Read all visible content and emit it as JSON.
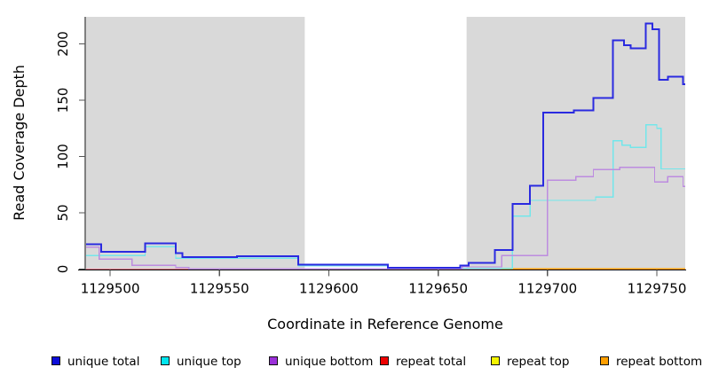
{
  "chart_data": {
    "type": "line",
    "subtype": "step-after",
    "title": "",
    "xlabel": "Coordinate in Reference Genome",
    "ylabel": "Read Coverage Depth",
    "xlim": [
      1129489,
      1129763
    ],
    "ylim": [
      0,
      224
    ],
    "x_ticks": [
      1129500,
      1129550,
      1129600,
      1129650,
      1129700,
      1129750
    ],
    "y_ticks": [
      0,
      50,
      100,
      150,
      200
    ],
    "grid": false,
    "legend_position": "bottom",
    "plot_background": "#ffffff",
    "shaded_regions": {
      "color": "#d9d9d9",
      "ranges": [
        [
          1129489,
          1129589
        ],
        [
          1129663,
          1129763
        ]
      ]
    },
    "series": [
      {
        "name": "unique total",
        "legend_color": "#0d0dd9",
        "line_color": "#2a2ae0",
        "width": 2,
        "z": 6,
        "steps": [
          [
            1129489,
            22
          ],
          [
            1129496,
            15.5
          ],
          [
            1129516,
            23
          ],
          [
            1129530,
            14
          ],
          [
            1129533,
            10.5
          ],
          [
            1129558,
            11.5
          ],
          [
            1129586,
            4
          ],
          [
            1129627,
            1
          ],
          [
            1129660,
            3
          ],
          [
            1129664,
            5.5
          ],
          [
            1129676,
            17
          ],
          [
            1129684,
            58
          ],
          [
            1129692,
            74
          ],
          [
            1129698,
            139
          ],
          [
            1129712,
            141
          ],
          [
            1129721,
            152
          ],
          [
            1129730,
            203
          ],
          [
            1129735,
            199
          ],
          [
            1129738,
            196
          ],
          [
            1129745,
            218
          ],
          [
            1129748,
            213
          ],
          [
            1129751,
            168
          ],
          [
            1129755,
            171
          ],
          [
            1129762,
            164
          ]
        ]
      },
      {
        "name": "unique top",
        "legend_color": "#00e5ee",
        "line_color": "#73e6ea",
        "width": 1.4,
        "z": 4,
        "steps": [
          [
            1129489,
            12
          ],
          [
            1129516,
            20
          ],
          [
            1129530,
            9.5
          ],
          [
            1129586,
            3
          ],
          [
            1129627,
            0.7
          ],
          [
            1129684,
            47
          ],
          [
            1129692,
            61
          ],
          [
            1129722,
            64
          ],
          [
            1129730,
            114
          ],
          [
            1129734,
            110
          ],
          [
            1129738,
            108
          ],
          [
            1129745,
            128
          ],
          [
            1129750,
            125
          ],
          [
            1129752,
            89
          ]
        ]
      },
      {
        "name": "unique bottom",
        "legend_color": "#9b30d9",
        "line_color": "#bd8ce0",
        "width": 1.4,
        "z": 5,
        "steps": [
          [
            1129489,
            19.5
          ],
          [
            1129495,
            9
          ],
          [
            1129510,
            3.3
          ],
          [
            1129530,
            1.4
          ],
          [
            1129536,
            0.3
          ],
          [
            1129661,
            2
          ],
          [
            1129679,
            12
          ],
          [
            1129700,
            79
          ],
          [
            1129713,
            82
          ],
          [
            1129721,
            88.5
          ],
          [
            1129733,
            90.5
          ],
          [
            1129749,
            77.5
          ],
          [
            1129755,
            82
          ],
          [
            1129762,
            73.5
          ]
        ]
      },
      {
        "name": "repeat total",
        "legend_color": "#ee0000",
        "line_color": "#e87a8c",
        "width": 1.2,
        "z": 2,
        "steps": [
          [
            1129489,
            0
          ]
        ]
      },
      {
        "name": "repeat top",
        "legend_color": "#f5f500",
        "line_color": "#f5f500",
        "width": 1.2,
        "z": 1,
        "steps": [
          [
            1129489,
            0
          ]
        ]
      },
      {
        "name": "repeat bottom",
        "legend_color": "#ff9f00",
        "line_color": "#ff9f00",
        "width": 1.8,
        "z": 3,
        "steps": [
          [
            1129489,
            0
          ],
          [
            1129536,
            null
          ],
          [
            1129679,
            0
          ]
        ]
      }
    ]
  }
}
